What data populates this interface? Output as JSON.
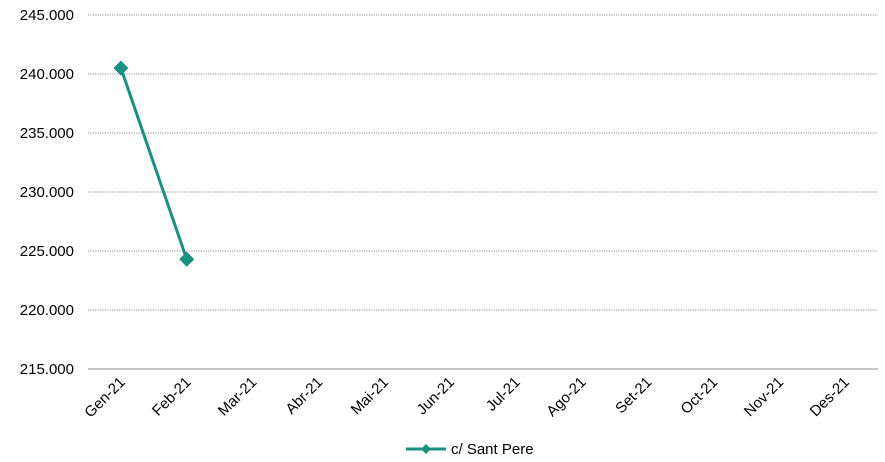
{
  "chart_data": {
    "type": "line",
    "categories": [
      "Gen-21",
      "Feb-21",
      "Mar-21",
      "Abr-21",
      "Mai-21",
      "Jun-21",
      "Jul-21",
      "Ago-21",
      "Set-21",
      "Oct-21",
      "Nov-21",
      "Des-21"
    ],
    "series": [
      {
        "name": "c/ Sant Pere",
        "values": [
          240500,
          224300,
          null,
          null,
          null,
          null,
          null,
          null,
          null,
          null,
          null,
          null
        ],
        "color": "#1a9081"
      }
    ],
    "ylim": [
      215000,
      245000
    ],
    "yticks": [
      215000,
      220000,
      225000,
      230000,
      235000,
      240000,
      245000
    ],
    "ytick_labels": [
      "215.000",
      "220.000",
      "225.000",
      "230.000",
      "235.000",
      "240.000",
      "245.000"
    ],
    "grid": "horizontal dotted",
    "legend_position": "bottom-center",
    "marker": "diamond"
  }
}
